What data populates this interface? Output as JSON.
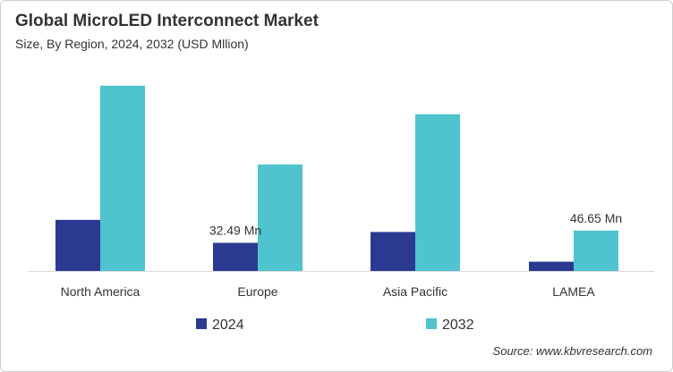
{
  "chart_data": {
    "type": "bar",
    "title": "Global MicroLED Interconnect Market",
    "subtitle": "Size, By Region, 2024, 2032 (USD Mllion)",
    "categories": [
      "North America",
      "Europe",
      "Asia Pacific",
      "LAMEA"
    ],
    "series": [
      {
        "name": "2024",
        "color": "#2b3990",
        "values": [
          59,
          32.49,
          45,
          10.7
        ]
      },
      {
        "name": "2032",
        "color": "#4fc4cf",
        "values": [
          214,
          123,
          181,
          46.65
        ]
      }
    ],
    "data_labels": [
      {
        "series": 0,
        "category": 1,
        "text": "32.49 Mn"
      },
      {
        "series": 1,
        "category": 3,
        "text": "46.65 Mn"
      }
    ],
    "ylim": [
      0,
      220
    ],
    "grid": false,
    "legend": "bottom",
    "source": "Source: www.kbvresearch.com"
  }
}
